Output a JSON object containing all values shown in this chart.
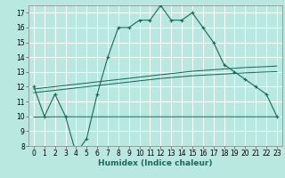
{
  "xlabel": "Humidex (Indice chaleur)",
  "bg_color": "#b8e8e0",
  "grid_color": "#ffffff",
  "line_color": "#1a6b5a",
  "x": [
    0,
    1,
    2,
    3,
    4,
    5,
    6,
    7,
    8,
    9,
    10,
    11,
    12,
    13,
    14,
    15,
    16,
    17,
    18,
    19,
    20,
    21,
    22,
    23
  ],
  "y_main": [
    12,
    10,
    11.5,
    10,
    7.5,
    8.5,
    11.5,
    14,
    16,
    16,
    16.5,
    16.5,
    17.5,
    16.5,
    16.5,
    17,
    16,
    15,
    13.5,
    13,
    12.5,
    12,
    11.5,
    10
  ],
  "y_upper": [
    11.85,
    11.93,
    12.01,
    12.09,
    12.17,
    12.25,
    12.33,
    12.41,
    12.49,
    12.57,
    12.65,
    12.73,
    12.81,
    12.89,
    12.97,
    13.05,
    13.1,
    13.15,
    13.2,
    13.25,
    13.3,
    13.33,
    13.36,
    13.4
  ],
  "y_mid": [
    11.6,
    11.68,
    11.76,
    11.84,
    11.92,
    12.0,
    12.08,
    12.16,
    12.24,
    12.32,
    12.4,
    12.48,
    12.56,
    12.62,
    12.68,
    12.74,
    12.78,
    12.82,
    12.86,
    12.9,
    12.94,
    12.97,
    13.0,
    13.02
  ],
  "y_lower": [
    9.95,
    9.96,
    9.97,
    9.97,
    9.97,
    9.97,
    9.97,
    9.97,
    9.97,
    9.97,
    9.97,
    9.97,
    9.97,
    9.97,
    9.97,
    9.97,
    9.97,
    9.97,
    9.97,
    9.97,
    9.97,
    9.97,
    9.97,
    9.97
  ],
  "xlim": [
    -0.5,
    23.5
  ],
  "ylim": [
    8,
    17.5
  ],
  "yticks": [
    8,
    9,
    10,
    11,
    12,
    13,
    14,
    15,
    16,
    17
  ],
  "xticks": [
    0,
    1,
    2,
    3,
    4,
    5,
    6,
    7,
    8,
    9,
    10,
    11,
    12,
    13,
    14,
    15,
    16,
    17,
    18,
    19,
    20,
    21,
    22,
    23
  ],
  "tick_fontsize": 5.5,
  "label_fontsize": 6.5
}
